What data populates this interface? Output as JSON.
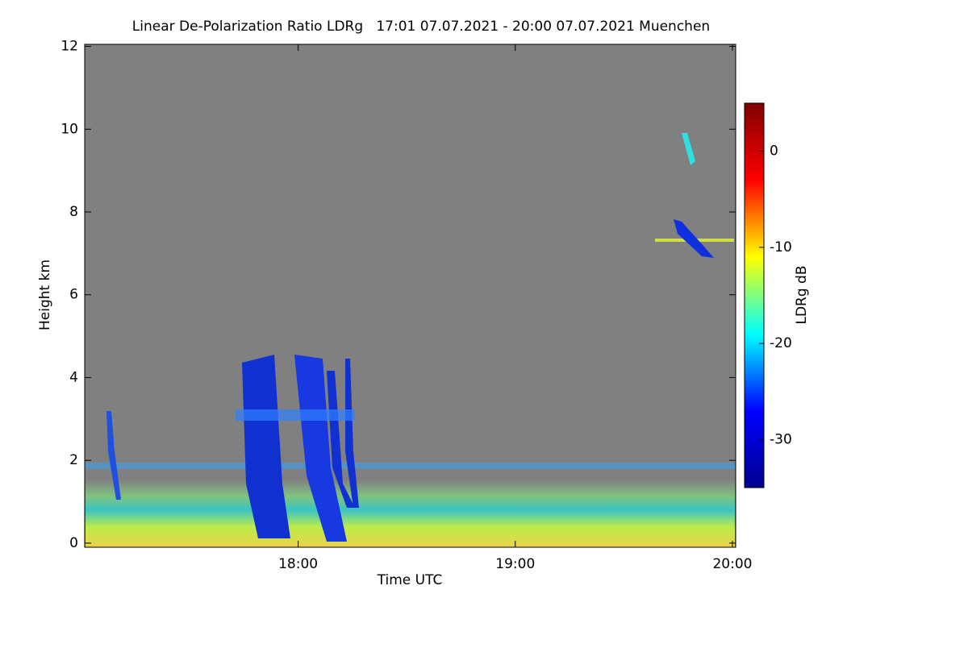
{
  "chart_data": {
    "type": "heatmap",
    "title": "Linear De-Polarization Ratio LDRg   17:01 07.07.2021 - 20:00 07.07.2021 Muenchen",
    "xlabel": "Time UTC",
    "ylabel": "Height km",
    "colorbar_label": "LDRg dB",
    "xlim": [
      17.017,
      20.015
    ],
    "xticks": [
      {
        "value": 18,
        "label": "18:00"
      },
      {
        "value": 19,
        "label": "19:00"
      },
      {
        "value": 20,
        "label": "20:00"
      }
    ],
    "ylim": [
      -0.1,
      12.05
    ],
    "yticks": [
      0,
      2,
      4,
      6,
      8,
      10,
      12
    ],
    "zlim": [
      -35,
      5
    ],
    "zticks": [
      0,
      -10,
      -20,
      -30
    ],
    "colormap": [
      "#00008f",
      "#0000ff",
      "#00ffff",
      "#ffff00",
      "#ff0000",
      "#800000"
    ],
    "background_color": "#808080"
  }
}
